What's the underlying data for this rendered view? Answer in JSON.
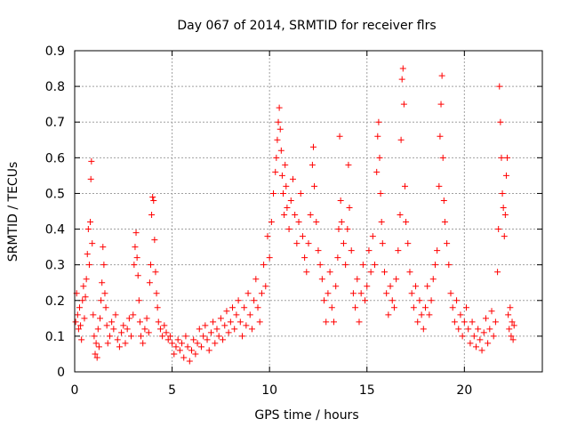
{
  "chart_data": {
    "type": "scatter",
    "title": "Day 067 of 2014, SRMTID for receiver flrs",
    "xlabel": "GPS time / hours",
    "ylabel": "SRMTID / TECUs",
    "xlim": [
      0,
      24
    ],
    "ylim": [
      0,
      0.9
    ],
    "xticks": [
      0,
      5,
      10,
      15,
      20
    ],
    "yticks": [
      0,
      0.1,
      0.2,
      0.3,
      0.4,
      0.5,
      0.6,
      0.7,
      0.8,
      0.9
    ],
    "xtick_labels": [
      "0",
      "5",
      "10",
      "15",
      "20"
    ],
    "ytick_labels": [
      "0",
      "0.1",
      "0.2",
      "0.3",
      "0.4",
      "0.5",
      "0.6",
      "0.7",
      "0.8",
      "0.9"
    ],
    "grid": true,
    "marker": "+",
    "color": "#ff0000",
    "series": [
      {
        "name": "SRMTID",
        "points": [
          [
            0.05,
            0.14
          ],
          [
            0.1,
            0.22
          ],
          [
            0.15,
            0.16
          ],
          [
            0.2,
            0.12
          ],
          [
            0.25,
            0.18
          ],
          [
            0.3,
            0.13
          ],
          [
            0.35,
            0.09
          ],
          [
            0.4,
            0.2
          ],
          [
            0.45,
            0.24
          ],
          [
            0.5,
            0.15
          ],
          [
            0.55,
            0.21
          ],
          [
            0.6,
            0.26
          ],
          [
            0.65,
            0.33
          ],
          [
            0.7,
            0.4
          ],
          [
            0.75,
            0.3
          ],
          [
            0.8,
            0.42
          ],
          [
            0.83,
            0.54
          ],
          [
            0.86,
            0.59
          ],
          [
            0.9,
            0.36
          ],
          [
            0.95,
            0.16
          ],
          [
            1.0,
            0.1
          ],
          [
            1.05,
            0.05
          ],
          [
            1.1,
            0.08
          ],
          [
            1.15,
            0.04
          ],
          [
            1.2,
            0.12
          ],
          [
            1.25,
            0.07
          ],
          [
            1.3,
            0.15
          ],
          [
            1.35,
            0.2
          ],
          [
            1.4,
            0.25
          ],
          [
            1.45,
            0.35
          ],
          [
            1.5,
            0.3
          ],
          [
            1.55,
            0.22
          ],
          [
            1.6,
            0.18
          ],
          [
            1.65,
            0.13
          ],
          [
            1.7,
            0.08
          ],
          [
            1.8,
            0.1
          ],
          [
            1.9,
            0.14
          ],
          [
            2.0,
            0.12
          ],
          [
            2.1,
            0.16
          ],
          [
            2.2,
            0.09
          ],
          [
            2.3,
            0.07
          ],
          [
            2.4,
            0.11
          ],
          [
            2.5,
            0.13
          ],
          [
            2.6,
            0.08
          ],
          [
            2.7,
            0.12
          ],
          [
            2.8,
            0.15
          ],
          [
            2.9,
            0.1
          ],
          [
            3.0,
            0.16
          ],
          [
            3.05,
            0.3
          ],
          [
            3.1,
            0.35
          ],
          [
            3.15,
            0.39
          ],
          [
            3.2,
            0.32
          ],
          [
            3.25,
            0.27
          ],
          [
            3.3,
            0.2
          ],
          [
            3.35,
            0.14
          ],
          [
            3.4,
            0.1
          ],
          [
            3.5,
            0.08
          ],
          [
            3.6,
            0.12
          ],
          [
            3.7,
            0.15
          ],
          [
            3.8,
            0.11
          ],
          [
            3.85,
            0.25
          ],
          [
            3.9,
            0.3
          ],
          [
            3.95,
            0.44
          ],
          [
            4.0,
            0.49
          ],
          [
            4.05,
            0.48
          ],
          [
            4.1,
            0.37
          ],
          [
            4.15,
            0.28
          ],
          [
            4.2,
            0.22
          ],
          [
            4.25,
            0.18
          ],
          [
            4.3,
            0.14
          ],
          [
            4.4,
            0.12
          ],
          [
            4.5,
            0.1
          ],
          [
            4.6,
            0.13
          ],
          [
            4.7,
            0.11
          ],
          [
            4.8,
            0.09
          ],
          [
            4.9,
            0.1
          ],
          [
            5.0,
            0.08
          ],
          [
            5.1,
            0.05
          ],
          [
            5.2,
            0.07
          ],
          [
            5.3,
            0.09
          ],
          [
            5.4,
            0.06
          ],
          [
            5.5,
            0.08
          ],
          [
            5.6,
            0.04
          ],
          [
            5.7,
            0.1
          ],
          [
            5.8,
            0.07
          ],
          [
            5.9,
            0.03
          ],
          [
            6.0,
            0.06
          ],
          [
            6.1,
            0.09
          ],
          [
            6.2,
            0.05
          ],
          [
            6.3,
            0.08
          ],
          [
            6.4,
            0.12
          ],
          [
            6.5,
            0.07
          ],
          [
            6.6,
            0.1
          ],
          [
            6.7,
            0.13
          ],
          [
            6.8,
            0.09
          ],
          [
            6.9,
            0.06
          ],
          [
            7.0,
            0.11
          ],
          [
            7.1,
            0.14
          ],
          [
            7.2,
            0.08
          ],
          [
            7.3,
            0.12
          ],
          [
            7.4,
            0.1
          ],
          [
            7.5,
            0.15
          ],
          [
            7.6,
            0.09
          ],
          [
            7.7,
            0.13
          ],
          [
            7.8,
            0.17
          ],
          [
            7.9,
            0.11
          ],
          [
            8.0,
            0.14
          ],
          [
            8.1,
            0.18
          ],
          [
            8.2,
            0.12
          ],
          [
            8.3,
            0.16
          ],
          [
            8.4,
            0.2
          ],
          [
            8.5,
            0.14
          ],
          [
            8.6,
            0.1
          ],
          [
            8.7,
            0.18
          ],
          [
            8.8,
            0.13
          ],
          [
            8.9,
            0.22
          ],
          [
            9.0,
            0.16
          ],
          [
            9.1,
            0.12
          ],
          [
            9.2,
            0.2
          ],
          [
            9.3,
            0.26
          ],
          [
            9.4,
            0.18
          ],
          [
            9.5,
            0.14
          ],
          [
            9.6,
            0.22
          ],
          [
            9.7,
            0.3
          ],
          [
            9.8,
            0.24
          ],
          [
            9.9,
            0.38
          ],
          [
            10.0,
            0.32
          ],
          [
            10.1,
            0.42
          ],
          [
            10.2,
            0.5
          ],
          [
            10.3,
            0.56
          ],
          [
            10.35,
            0.6
          ],
          [
            10.4,
            0.65
          ],
          [
            10.45,
            0.7
          ],
          [
            10.5,
            0.74
          ],
          [
            10.55,
            0.68
          ],
          [
            10.6,
            0.62
          ],
          [
            10.65,
            0.55
          ],
          [
            10.7,
            0.5
          ],
          [
            10.75,
            0.44
          ],
          [
            10.8,
            0.58
          ],
          [
            10.85,
            0.52
          ],
          [
            10.9,
            0.46
          ],
          [
            11.0,
            0.4
          ],
          [
            11.1,
            0.48
          ],
          [
            11.2,
            0.54
          ],
          [
            11.3,
            0.44
          ],
          [
            11.4,
            0.36
          ],
          [
            11.5,
            0.42
          ],
          [
            11.6,
            0.5
          ],
          [
            11.7,
            0.38
          ],
          [
            11.8,
            0.32
          ],
          [
            11.9,
            0.28
          ],
          [
            12.0,
            0.36
          ],
          [
            12.1,
            0.44
          ],
          [
            12.2,
            0.58
          ],
          [
            12.25,
            0.63
          ],
          [
            12.3,
            0.52
          ],
          [
            12.4,
            0.42
          ],
          [
            12.5,
            0.34
          ],
          [
            12.6,
            0.3
          ],
          [
            12.7,
            0.26
          ],
          [
            12.8,
            0.2
          ],
          [
            12.9,
            0.14
          ],
          [
            13.0,
            0.22
          ],
          [
            13.1,
            0.28
          ],
          [
            13.2,
            0.18
          ],
          [
            13.3,
            0.14
          ],
          [
            13.4,
            0.24
          ],
          [
            13.5,
            0.32
          ],
          [
            13.55,
            0.4
          ],
          [
            13.6,
            0.66
          ],
          [
            13.65,
            0.48
          ],
          [
            13.7,
            0.42
          ],
          [
            13.8,
            0.36
          ],
          [
            13.9,
            0.3
          ],
          [
            14.0,
            0.4
          ],
          [
            14.05,
            0.58
          ],
          [
            14.1,
            0.46
          ],
          [
            14.2,
            0.34
          ],
          [
            14.3,
            0.22
          ],
          [
            14.4,
            0.18
          ],
          [
            14.5,
            0.26
          ],
          [
            14.6,
            0.14
          ],
          [
            14.7,
            0.22
          ],
          [
            14.8,
            0.3
          ],
          [
            14.9,
            0.2
          ],
          [
            15.0,
            0.24
          ],
          [
            15.1,
            0.34
          ],
          [
            15.2,
            0.28
          ],
          [
            15.3,
            0.38
          ],
          [
            15.4,
            0.3
          ],
          [
            15.5,
            0.56
          ],
          [
            15.55,
            0.66
          ],
          [
            15.6,
            0.7
          ],
          [
            15.65,
            0.6
          ],
          [
            15.7,
            0.5
          ],
          [
            15.75,
            0.42
          ],
          [
            15.8,
            0.36
          ],
          [
            15.9,
            0.28
          ],
          [
            16.0,
            0.22
          ],
          [
            16.1,
            0.16
          ],
          [
            16.2,
            0.24
          ],
          [
            16.3,
            0.2
          ],
          [
            16.4,
            0.18
          ],
          [
            16.5,
            0.26
          ],
          [
            16.6,
            0.34
          ],
          [
            16.7,
            0.44
          ],
          [
            16.75,
            0.65
          ],
          [
            16.8,
            0.82
          ],
          [
            16.85,
            0.85
          ],
          [
            16.9,
            0.75
          ],
          [
            16.95,
            0.52
          ],
          [
            17.0,
            0.42
          ],
          [
            17.1,
            0.36
          ],
          [
            17.2,
            0.28
          ],
          [
            17.3,
            0.22
          ],
          [
            17.4,
            0.18
          ],
          [
            17.5,
            0.24
          ],
          [
            17.6,
            0.14
          ],
          [
            17.7,
            0.2
          ],
          [
            17.8,
            0.16
          ],
          [
            17.9,
            0.12
          ],
          [
            18.0,
            0.18
          ],
          [
            18.1,
            0.24
          ],
          [
            18.2,
            0.16
          ],
          [
            18.3,
            0.2
          ],
          [
            18.4,
            0.26
          ],
          [
            18.5,
            0.3
          ],
          [
            18.6,
            0.34
          ],
          [
            18.7,
            0.52
          ],
          [
            18.75,
            0.66
          ],
          [
            18.8,
            0.75
          ],
          [
            18.85,
            0.83
          ],
          [
            18.9,
            0.6
          ],
          [
            18.95,
            0.48
          ],
          [
            19.0,
            0.42
          ],
          [
            19.1,
            0.36
          ],
          [
            19.2,
            0.3
          ],
          [
            19.3,
            0.22
          ],
          [
            19.4,
            0.18
          ],
          [
            19.5,
            0.14
          ],
          [
            19.6,
            0.2
          ],
          [
            19.7,
            0.12
          ],
          [
            19.8,
            0.16
          ],
          [
            19.9,
            0.1
          ],
          [
            20.0,
            0.14
          ],
          [
            20.1,
            0.18
          ],
          [
            20.2,
            0.12
          ],
          [
            20.3,
            0.08
          ],
          [
            20.4,
            0.14
          ],
          [
            20.5,
            0.1
          ],
          [
            20.6,
            0.07
          ],
          [
            20.7,
            0.12
          ],
          [
            20.8,
            0.09
          ],
          [
            20.9,
            0.06
          ],
          [
            21.0,
            0.11
          ],
          [
            21.1,
            0.15
          ],
          [
            21.2,
            0.08
          ],
          [
            21.3,
            0.12
          ],
          [
            21.4,
            0.17
          ],
          [
            21.5,
            0.1
          ],
          [
            21.6,
            0.14
          ],
          [
            21.7,
            0.28
          ],
          [
            21.75,
            0.4
          ],
          [
            21.8,
            0.8
          ],
          [
            21.85,
            0.7
          ],
          [
            21.9,
            0.6
          ],
          [
            21.95,
            0.5
          ],
          [
            22.0,
            0.46
          ],
          [
            22.05,
            0.38
          ],
          [
            22.1,
            0.44
          ],
          [
            22.15,
            0.55
          ],
          [
            22.2,
            0.6
          ],
          [
            22.25,
            0.16
          ],
          [
            22.3,
            0.12
          ],
          [
            22.35,
            0.18
          ],
          [
            22.4,
            0.1
          ],
          [
            22.45,
            0.14
          ],
          [
            22.5,
            0.09
          ],
          [
            22.55,
            0.13
          ]
        ]
      }
    ]
  }
}
